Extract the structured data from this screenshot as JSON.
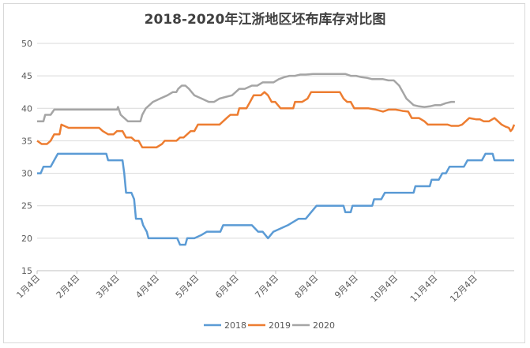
{
  "chart_data": {
    "type": "line",
    "title": "2018-2020年江浙地区坯布库存对比图",
    "xlabel": "",
    "ylabel": "",
    "ylim": [
      15,
      50
    ],
    "y_ticks": [
      15,
      20,
      25,
      30,
      35,
      40,
      45,
      50
    ],
    "x_ticks": [
      "1月4日",
      "2月4日",
      "3月4日",
      "4月4日",
      "5月4日",
      "6月4日",
      "7月4日",
      "8月4日",
      "9月4日",
      "10月4日",
      "11月4日",
      "12月4日"
    ],
    "grid": true,
    "legend_position": "bottom",
    "series": [
      {
        "name": "2018",
        "color": "#5b9bd5",
        "points": [
          [
            1,
            30
          ],
          [
            5,
            30
          ],
          [
            8,
            31
          ],
          [
            16,
            31
          ],
          [
            20,
            32
          ],
          [
            24,
            33
          ],
          [
            32,
            33
          ],
          [
            40,
            33
          ],
          [
            50,
            33
          ],
          [
            60,
            33
          ],
          [
            70,
            33
          ],
          [
            78,
            33
          ],
          [
            80,
            32
          ],
          [
            88,
            32
          ],
          [
            96,
            32
          ],
          [
            98,
            30
          ],
          [
            100,
            27
          ],
          [
            106,
            27
          ],
          [
            109,
            26
          ],
          [
            111,
            23
          ],
          [
            117,
            23
          ],
          [
            119,
            22
          ],
          [
            123,
            21
          ],
          [
            125,
            20
          ],
          [
            133,
            20
          ],
          [
            141,
            20
          ],
          [
            149,
            20
          ],
          [
            157,
            20
          ],
          [
            160,
            19
          ],
          [
            166,
            19
          ],
          [
            168,
            20
          ],
          [
            176,
            20
          ],
          [
            184,
            20.5
          ],
          [
            190,
            21
          ],
          [
            200,
            21
          ],
          [
            205,
            21
          ],
          [
            208,
            22
          ],
          [
            216,
            22
          ],
          [
            224,
            22
          ],
          [
            232,
            22
          ],
          [
            240,
            22
          ],
          [
            247,
            21
          ],
          [
            252,
            21
          ],
          [
            258,
            20
          ],
          [
            264,
            21
          ],
          [
            272,
            21.5
          ],
          [
            280,
            22
          ],
          [
            286,
            22.5
          ],
          [
            292,
            23
          ],
          [
            300,
            23
          ],
          [
            306,
            24
          ],
          [
            312,
            25
          ],
          [
            320,
            25
          ],
          [
            328,
            25
          ],
          [
            336,
            25
          ],
          [
            342,
            25
          ],
          [
            344,
            24
          ],
          [
            350,
            24
          ],
          [
            352,
            25
          ],
          [
            360,
            25
          ],
          [
            368,
            25
          ],
          [
            374,
            25
          ],
          [
            376,
            26
          ],
          [
            384,
            26
          ],
          [
            388,
            27
          ],
          [
            396,
            27
          ],
          [
            404,
            27
          ],
          [
            412,
            27
          ],
          [
            420,
            27
          ],
          [
            422,
            28
          ],
          [
            430,
            28
          ],
          [
            438,
            28
          ],
          [
            440,
            29
          ],
          [
            448,
            29
          ],
          [
            452,
            30
          ],
          [
            456,
            30
          ],
          [
            460,
            31
          ],
          [
            468,
            31
          ],
          [
            476,
            31
          ],
          [
            480,
            32
          ],
          [
            488,
            32
          ],
          [
            496,
            32
          ],
          [
            500,
            33
          ],
          [
            508,
            33
          ],
          [
            510,
            32
          ],
          [
            518,
            32
          ],
          [
            526,
            32
          ],
          [
            532,
            32
          ]
        ]
      },
      {
        "name": "2019",
        "color": "#ed7d31",
        "points": [
          [
            1,
            35
          ],
          [
            6,
            34.5
          ],
          [
            12,
            34.5
          ],
          [
            16,
            35
          ],
          [
            20,
            36
          ],
          [
            26,
            36
          ],
          [
            28,
            37.5
          ],
          [
            36,
            37
          ],
          [
            42,
            37
          ],
          [
            50,
            37
          ],
          [
            58,
            37
          ],
          [
            64,
            37
          ],
          [
            70,
            37
          ],
          [
            74,
            36.5
          ],
          [
            80,
            36
          ],
          [
            86,
            36
          ],
          [
            90,
            36.5
          ],
          [
            96,
            36.5
          ],
          [
            100,
            35.5
          ],
          [
            106,
            35.5
          ],
          [
            110,
            35
          ],
          [
            114,
            35
          ],
          [
            118,
            34
          ],
          [
            126,
            34
          ],
          [
            134,
            34
          ],
          [
            140,
            34.5
          ],
          [
            143,
            35
          ],
          [
            150,
            35
          ],
          [
            156,
            35
          ],
          [
            160,
            35.5
          ],
          [
            164,
            35.5
          ],
          [
            168,
            36
          ],
          [
            172,
            36.5
          ],
          [
            176,
            36.5
          ],
          [
            180,
            37.5
          ],
          [
            188,
            37.5
          ],
          [
            196,
            37.5
          ],
          [
            204,
            37.5
          ],
          [
            208,
            38
          ],
          [
            212,
            38.5
          ],
          [
            216,
            39
          ],
          [
            224,
            39
          ],
          [
            226,
            40
          ],
          [
            234,
            40
          ],
          [
            238,
            41
          ],
          [
            242,
            42
          ],
          [
            250,
            42
          ],
          [
            254,
            42.5
          ],
          [
            258,
            42
          ],
          [
            262,
            41
          ],
          [
            266,
            41
          ],
          [
            272,
            40
          ],
          [
            280,
            40
          ],
          [
            286,
            40
          ],
          [
            288,
            41
          ],
          [
            296,
            41
          ],
          [
            302,
            41.5
          ],
          [
            306,
            42.5
          ],
          [
            314,
            42.5
          ],
          [
            322,
            42.5
          ],
          [
            330,
            42.5
          ],
          [
            338,
            42.5
          ],
          [
            342,
            41.5
          ],
          [
            346,
            41
          ],
          [
            350,
            41
          ],
          [
            354,
            40
          ],
          [
            362,
            40
          ],
          [
            370,
            40
          ],
          [
            378,
            39.8
          ],
          [
            386,
            39.5
          ],
          [
            392,
            39.8
          ],
          [
            400,
            39.8
          ],
          [
            408,
            39.6
          ],
          [
            414,
            39.5
          ],
          [
            418,
            38.5
          ],
          [
            426,
            38.5
          ],
          [
            432,
            38
          ],
          [
            436,
            37.5
          ],
          [
            444,
            37.5
          ],
          [
            452,
            37.5
          ],
          [
            458,
            37.5
          ],
          [
            462,
            37.3
          ],
          [
            470,
            37.3
          ],
          [
            474,
            37.5
          ],
          [
            478,
            38
          ],
          [
            482,
            38.5
          ],
          [
            490,
            38.3
          ],
          [
            494,
            38.3
          ],
          [
            498,
            38
          ],
          [
            504,
            38
          ],
          [
            510,
            38.5
          ],
          [
            514,
            38
          ],
          [
            518,
            37.5
          ],
          [
            522,
            37.2
          ],
          [
            526,
            37
          ],
          [
            528,
            36.5
          ],
          [
            530,
            36.8
          ],
          [
            532,
            37.5
          ]
        ]
      },
      {
        "name": "2020",
        "color": "#a5a5a5",
        "points": [
          [
            1,
            38
          ],
          [
            8,
            38
          ],
          [
            10,
            39
          ],
          [
            16,
            39
          ],
          [
            20,
            39.8
          ],
          [
            28,
            39.8
          ],
          [
            36,
            39.8
          ],
          [
            44,
            39.8
          ],
          [
            52,
            39.8
          ],
          [
            60,
            39.8
          ],
          [
            68,
            39.8
          ],
          [
            76,
            39.8
          ],
          [
            84,
            39.8
          ],
          [
            90,
            39.8
          ],
          [
            91,
            40.2
          ],
          [
            94,
            39
          ],
          [
            98,
            38.5
          ],
          [
            102,
            38
          ],
          [
            110,
            38
          ],
          [
            116,
            38
          ],
          [
            118,
            39
          ],
          [
            122,
            40
          ],
          [
            126,
            40.5
          ],
          [
            130,
            41
          ],
          [
            138,
            41.5
          ],
          [
            146,
            42
          ],
          [
            152,
            42.5
          ],
          [
            156,
            42.5
          ],
          [
            158,
            43
          ],
          [
            162,
            43.5
          ],
          [
            166,
            43.5
          ],
          [
            170,
            43
          ],
          [
            176,
            42
          ],
          [
            184,
            41.5
          ],
          [
            192,
            41
          ],
          [
            198,
            41
          ],
          [
            204,
            41.5
          ],
          [
            212,
            41.8
          ],
          [
            218,
            42
          ],
          [
            222,
            42.5
          ],
          [
            226,
            43
          ],
          [
            232,
            43
          ],
          [
            240,
            43.5
          ],
          [
            246,
            43.5
          ],
          [
            252,
            44
          ],
          [
            258,
            44
          ],
          [
            264,
            44
          ],
          [
            270,
            44.5
          ],
          [
            276,
            44.8
          ],
          [
            282,
            45
          ],
          [
            288,
            45
          ],
          [
            294,
            45.2
          ],
          [
            300,
            45.2
          ],
          [
            308,
            45.3
          ],
          [
            316,
            45.3
          ],
          [
            322,
            45.3
          ],
          [
            330,
            45.3
          ],
          [
            338,
            45.3
          ],
          [
            344,
            45.3
          ],
          [
            350,
            45
          ],
          [
            356,
            45
          ],
          [
            362,
            44.8
          ],
          [
            368,
            44.7
          ],
          [
            374,
            44.5
          ],
          [
            380,
            44.5
          ],
          [
            386,
            44.5
          ],
          [
            392,
            44.3
          ],
          [
            398,
            44.3
          ],
          [
            404,
            43.5
          ],
          [
            408,
            42.5
          ],
          [
            412,
            41.5
          ],
          [
            416,
            41
          ],
          [
            420,
            40.5
          ],
          [
            426,
            40.3
          ],
          [
            432,
            40.2
          ],
          [
            438,
            40.3
          ],
          [
            444,
            40.5
          ],
          [
            450,
            40.5
          ],
          [
            456,
            40.8
          ],
          [
            462,
            41
          ],
          [
            466,
            41
          ]
        ]
      }
    ]
  }
}
